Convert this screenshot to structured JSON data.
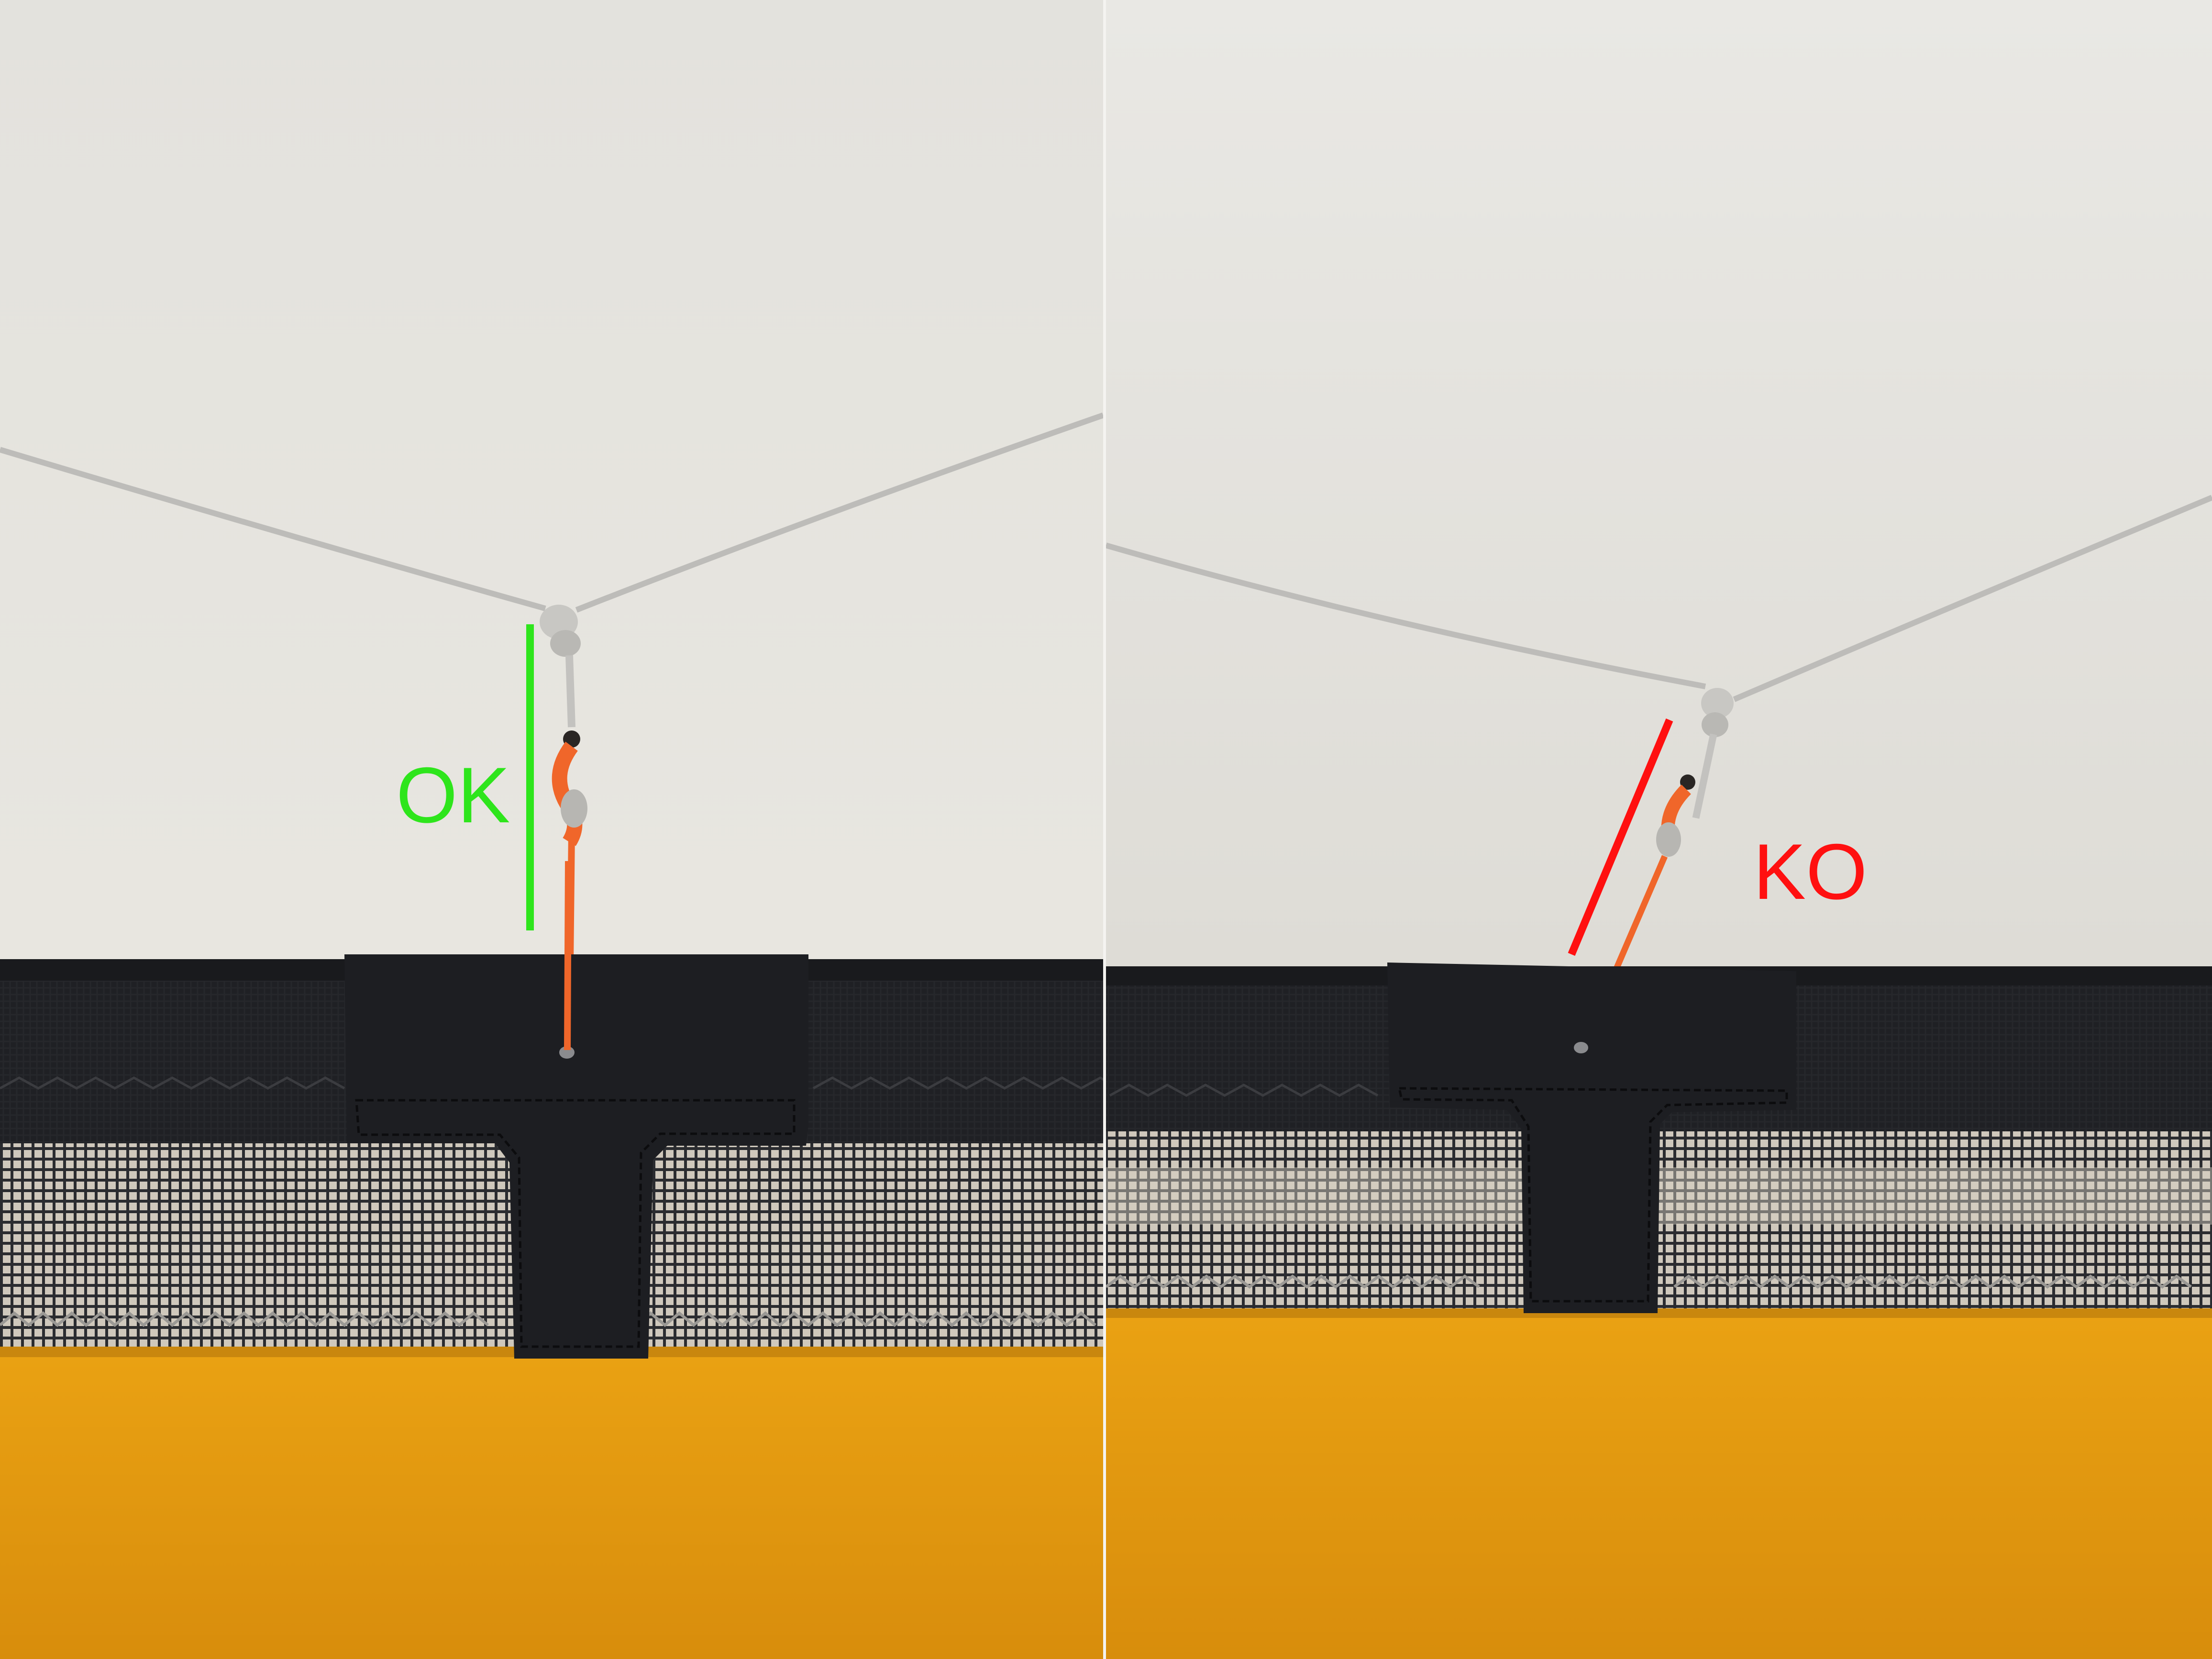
{
  "panels": [
    {
      "verdict_label": "OK",
      "verdict_color": "#2ee51c"
    },
    {
      "verdict_label": "KO",
      "verdict_color": "#ff1010"
    }
  ],
  "colors": {
    "wall": "#e6e4df",
    "guyline": "#bfbebb",
    "bungee": "#f0662a",
    "fabric_black": "#1d1e22",
    "mesh": "#2b2c30",
    "tent_floor": "#e39a0f"
  }
}
